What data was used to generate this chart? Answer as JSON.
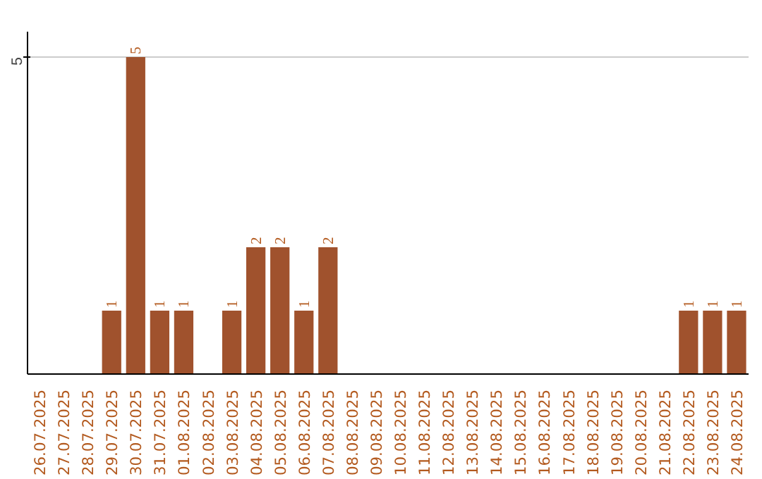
{
  "chart_data": {
    "type": "bar",
    "categories": [
      "26.07.2025",
      "27.07.2025",
      "28.07.2025",
      "29.07.2025",
      "30.07.2025",
      "31.07.2025",
      "01.08.2025",
      "02.08.2025",
      "03.08.2025",
      "04.08.2025",
      "05.08.2025",
      "06.08.2025",
      "07.08.2025",
      "08.08.2025",
      "09.08.2025",
      "10.08.2025",
      "11.08.2025",
      "12.08.2025",
      "13.08.2025",
      "14.08.2025",
      "15.08.2025",
      "16.08.2025",
      "17.08.2025",
      "18.08.2025",
      "19.08.2025",
      "20.08.2025",
      "21.08.2025",
      "22.08.2025",
      "23.08.2025",
      "24.08.2025"
    ],
    "values": [
      0,
      0,
      0,
      1,
      5,
      1,
      1,
      0,
      1,
      2,
      2,
      1,
      2,
      0,
      0,
      0,
      0,
      0,
      0,
      0,
      0,
      0,
      0,
      0,
      0,
      0,
      0,
      1,
      1,
      1
    ],
    "value_labels": [
      null,
      null,
      null,
      "1",
      "5",
      "1",
      "1",
      null,
      "1",
      "2",
      "2",
      "1",
      "2",
      null,
      null,
      null,
      null,
      null,
      null,
      null,
      null,
      null,
      null,
      null,
      null,
      null,
      null,
      "1",
      "1",
      "1"
    ],
    "color": "#a0522d",
    "ylim": [
      0,
      5.4
    ],
    "yticks": [
      5
    ],
    "grid": "y",
    "legend": false
  }
}
